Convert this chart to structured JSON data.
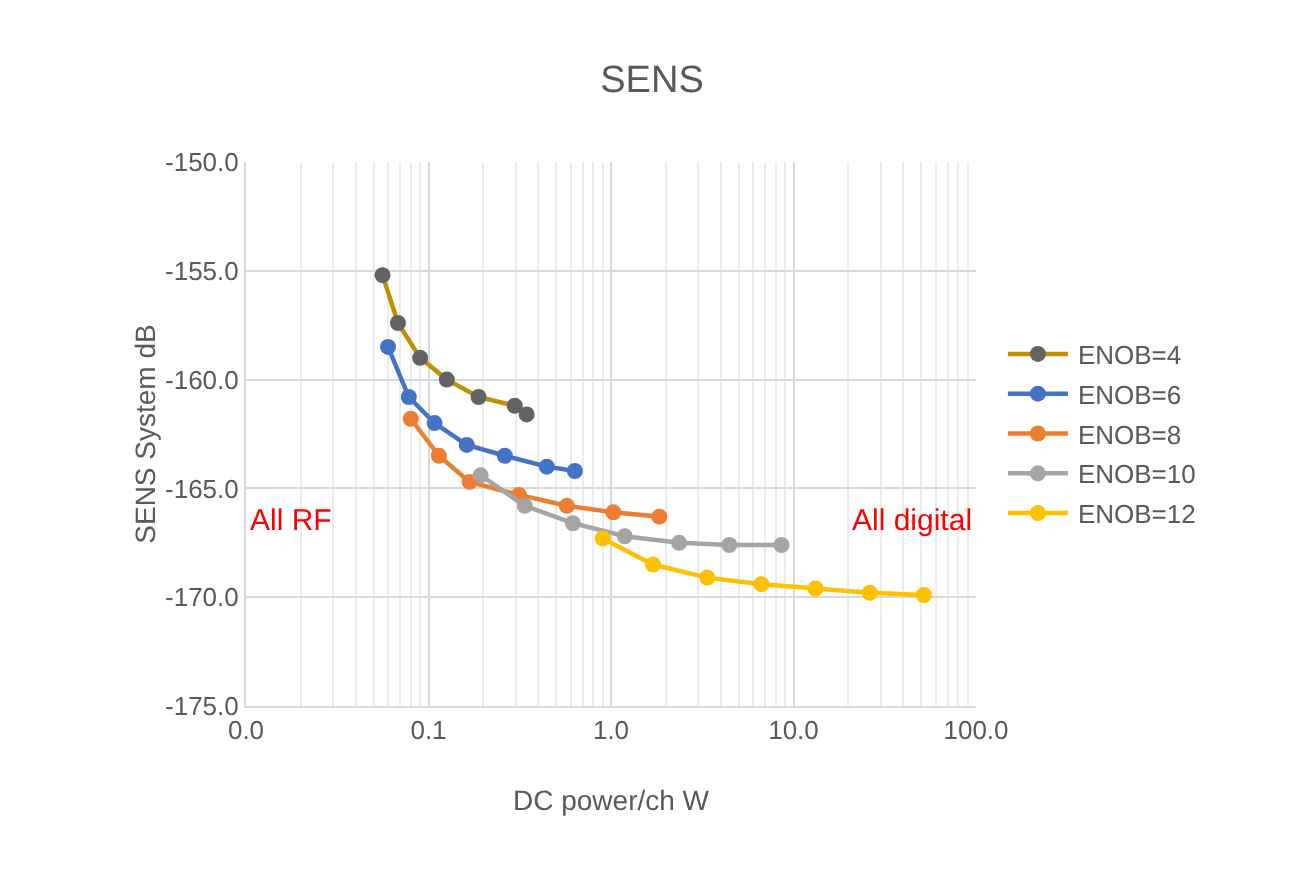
{
  "chart_data": {
    "type": "line",
    "title": "SENS",
    "xlabel": "DC power/ch W",
    "ylabel": "SENS System dB",
    "log": "x",
    "grid": true,
    "legend": "right",
    "marker": "circle",
    "line_style": "solid",
    "xlim": [
      0.01,
      100
    ],
    "xticks": [
      {
        "value": 0.01,
        "label": "0.0"
      },
      {
        "value": 0.1,
        "label": "0.1"
      },
      {
        "value": 1,
        "label": "1.0"
      },
      {
        "value": 10,
        "label": "10.0"
      },
      {
        "value": 100,
        "label": "100.0"
      }
    ],
    "ylim": [
      -175,
      -150
    ],
    "yticks": [
      {
        "value": -175,
        "label": "-175.0"
      },
      {
        "value": -170,
        "label": "-170.0"
      },
      {
        "value": -165,
        "label": "-165.0"
      },
      {
        "value": -160,
        "label": "-160.0"
      },
      {
        "value": -155,
        "label": "-155.0"
      },
      {
        "value": -150,
        "label": "-150.0"
      }
    ],
    "annotations": [
      "All RF",
      "All digital"
    ],
    "series": [
      {
        "name": "ENOB=4",
        "color": "#bf9000",
        "colors": [
          "#636363",
          "#636363",
          "#636363",
          "#636363",
          "#636363",
          "#636363",
          "#636363"
        ],
        "x": [
          0.056,
          0.068,
          0.09,
          0.126,
          0.188,
          0.297,
          0.345
        ],
        "values": [
          -155.2,
          -157.4,
          -159.0,
          -160.0,
          -160.8,
          -161.2,
          -161.6
        ]
      },
      {
        "name": "ENOB=6",
        "color": "#4472c4",
        "x": [
          0.06,
          0.078,
          0.108,
          0.162,
          0.262,
          0.445,
          0.634
        ],
        "values": [
          -158.5,
          -160.8,
          -162.0,
          -163.0,
          -163.5,
          -164.0,
          -164.2
        ]
      },
      {
        "name": "ENOB=8",
        "color": "#ed7d31",
        "x": [
          0.08,
          0.114,
          0.168,
          0.313,
          0.573,
          1.03,
          1.84
        ],
        "values": [
          -161.8,
          -163.5,
          -164.7,
          -165.3,
          -165.8,
          -166.1,
          -166.3
        ]
      },
      {
        "name": "ENOB=10",
        "color": "#a5a5a5",
        "x": [
          0.193,
          0.337,
          0.618,
          1.19,
          2.36,
          4.45,
          8.6
        ],
        "values": [
          -164.4,
          -165.8,
          -166.6,
          -167.2,
          -167.5,
          -167.6,
          -167.6
        ]
      },
      {
        "name": "ENOB=12",
        "color": "#ffc000",
        "x": [
          0.9,
          1.7,
          3.37,
          6.67,
          13.2,
          26.2,
          51.8
        ],
        "values": [
          -167.3,
          -168.5,
          -169.1,
          -169.4,
          -169.6,
          -169.8,
          -169.9
        ]
      }
    ]
  }
}
